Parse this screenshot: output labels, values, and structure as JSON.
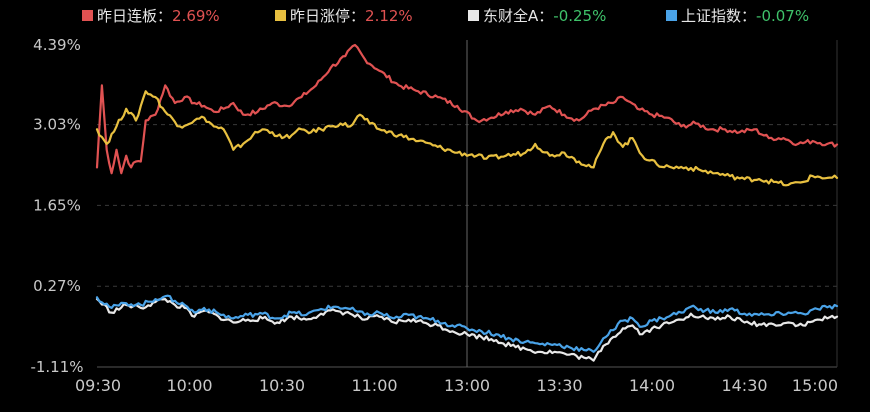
{
  "chart_data": {
    "type": "line",
    "y_unit": "%",
    "x_ticks": [
      "09:30",
      "10:00",
      "10:30",
      "11:00",
      "13:00",
      "13:30",
      "14:00",
      "14:30",
      "15:00"
    ],
    "y_ticks": [
      "4.39%",
      "3.03%",
      "1.65%",
      "0.27%",
      "-1.11%"
    ],
    "ylim": [
      -1.11,
      4.39
    ],
    "grid": "horizontal-dashed",
    "legend": "top",
    "series": [
      {
        "name": "昨日连板",
        "latest": "2.69%",
        "color": "#e05252",
        "points": [
          [
            0,
            2.3
          ],
          [
            1,
            3.7
          ],
          [
            2,
            2.6
          ],
          [
            3,
            2.2
          ],
          [
            4,
            2.6
          ],
          [
            5,
            2.2
          ],
          [
            6,
            2.5
          ],
          [
            7,
            2.3
          ],
          [
            8,
            2.4
          ],
          [
            9,
            2.4
          ],
          [
            10,
            3.1
          ],
          [
            12,
            3.2
          ],
          [
            14,
            3.7
          ],
          [
            16,
            3.4
          ],
          [
            18,
            3.5
          ],
          [
            20,
            3.4
          ],
          [
            22,
            3.35
          ],
          [
            24,
            3.25
          ],
          [
            26,
            3.3
          ],
          [
            28,
            3.4
          ],
          [
            30,
            3.2
          ],
          [
            33,
            3.25
          ],
          [
            36,
            3.4
          ],
          [
            39,
            3.35
          ],
          [
            42,
            3.5
          ],
          [
            45,
            3.7
          ],
          [
            48,
            4.0
          ],
          [
            51,
            4.2
          ],
          [
            53,
            4.39
          ],
          [
            55,
            4.15
          ],
          [
            58,
            3.95
          ],
          [
            62,
            3.7
          ],
          [
            66,
            3.6
          ],
          [
            70,
            3.5
          ],
          [
            74,
            3.35
          ],
          [
            78,
            3.1
          ],
          [
            81,
            3.15
          ],
          [
            84,
            3.25
          ],
          [
            87,
            3.3
          ],
          [
            90,
            3.2
          ],
          [
            93,
            3.35
          ],
          [
            96,
            3.2
          ],
          [
            99,
            3.1
          ],
          [
            102,
            3.3
          ],
          [
            106,
            3.4
          ],
          [
            108,
            3.5
          ],
          [
            111,
            3.3
          ],
          [
            114,
            3.2
          ],
          [
            117,
            3.15
          ],
          [
            120,
            3.0
          ],
          [
            123,
            3.05
          ],
          [
            126,
            2.95
          ],
          [
            129,
            2.95
          ],
          [
            132,
            2.9
          ],
          [
            135,
            2.95
          ],
          [
            138,
            2.8
          ],
          [
            141,
            2.8
          ],
          [
            144,
            2.7
          ],
          [
            147,
            2.75
          ],
          [
            150,
            2.7
          ],
          [
            152,
            2.69
          ]
        ]
      },
      {
        "name": "昨日涨停",
        "latest": "2.12%",
        "color": "#e8c040",
        "points": [
          [
            0,
            2.95
          ],
          [
            2,
            2.7
          ],
          [
            4,
            3.0
          ],
          [
            6,
            3.3
          ],
          [
            8,
            3.1
          ],
          [
            10,
            3.6
          ],
          [
            12,
            3.5
          ],
          [
            14,
            3.25
          ],
          [
            17,
            3.0
          ],
          [
            20,
            3.1
          ],
          [
            22,
            3.15
          ],
          [
            24,
            3.0
          ],
          [
            26,
            2.95
          ],
          [
            28,
            2.6
          ],
          [
            30,
            2.7
          ],
          [
            32,
            2.85
          ],
          [
            34,
            2.95
          ],
          [
            36,
            2.9
          ],
          [
            38,
            2.8
          ],
          [
            40,
            2.85
          ],
          [
            42,
            2.95
          ],
          [
            44,
            2.9
          ],
          [
            46,
            2.95
          ],
          [
            48,
            3.0
          ],
          [
            50,
            3.05
          ],
          [
            52,
            3.0
          ],
          [
            54,
            3.2
          ],
          [
            56,
            3.05
          ],
          [
            58,
            2.95
          ],
          [
            62,
            2.85
          ],
          [
            66,
            2.75
          ],
          [
            70,
            2.65
          ],
          [
            74,
            2.55
          ],
          [
            78,
            2.5
          ],
          [
            80,
            2.45
          ],
          [
            84,
            2.5
          ],
          [
            88,
            2.55
          ],
          [
            90,
            2.7
          ],
          [
            93,
            2.5
          ],
          [
            96,
            2.55
          ],
          [
            99,
            2.4
          ],
          [
            102,
            2.3
          ],
          [
            104,
            2.7
          ],
          [
            106,
            2.9
          ],
          [
            108,
            2.65
          ],
          [
            110,
            2.8
          ],
          [
            112,
            2.5
          ],
          [
            115,
            2.35
          ],
          [
            118,
            2.3
          ],
          [
            121,
            2.3
          ],
          [
            124,
            2.25
          ],
          [
            127,
            2.2
          ],
          [
            130,
            2.15
          ],
          [
            133,
            2.1
          ],
          [
            136,
            2.1
          ],
          [
            139,
            2.05
          ],
          [
            142,
            2.0
          ],
          [
            145,
            2.05
          ],
          [
            147,
            2.15
          ],
          [
            150,
            2.12
          ],
          [
            152,
            2.12
          ]
        ]
      },
      {
        "name": "东财全A",
        "latest": "-0.25%",
        "color": "#e8e8e8",
        "points": [
          [
            0,
            0.05
          ],
          [
            3,
            -0.18
          ],
          [
            6,
            -0.05
          ],
          [
            9,
            -0.1
          ],
          [
            12,
            0.0
          ],
          [
            14,
            0.05
          ],
          [
            16,
            -0.05
          ],
          [
            18,
            -0.1
          ],
          [
            20,
            -0.25
          ],
          [
            22,
            -0.15
          ],
          [
            25,
            -0.25
          ],
          [
            28,
            -0.35
          ],
          [
            31,
            -0.3
          ],
          [
            34,
            -0.28
          ],
          [
            37,
            -0.35
          ],
          [
            40,
            -0.25
          ],
          [
            43,
            -0.3
          ],
          [
            46,
            -0.2
          ],
          [
            49,
            -0.15
          ],
          [
            52,
            -0.2
          ],
          [
            55,
            -0.3
          ],
          [
            58,
            -0.25
          ],
          [
            61,
            -0.35
          ],
          [
            64,
            -0.3
          ],
          [
            67,
            -0.35
          ],
          [
            70,
            -0.4
          ],
          [
            73,
            -0.5
          ],
          [
            76,
            -0.55
          ],
          [
            79,
            -0.6
          ],
          [
            82,
            -0.65
          ],
          [
            85,
            -0.75
          ],
          [
            88,
            -0.8
          ],
          [
            91,
            -0.85
          ],
          [
            94,
            -0.85
          ],
          [
            97,
            -0.9
          ],
          [
            100,
            -0.95
          ],
          [
            102,
            -1.0
          ],
          [
            104,
            -0.75
          ],
          [
            106,
            -0.6
          ],
          [
            108,
            -0.45
          ],
          [
            110,
            -0.4
          ],
          [
            112,
            -0.55
          ],
          [
            114,
            -0.45
          ],
          [
            116,
            -0.4
          ],
          [
            118,
            -0.35
          ],
          [
            120,
            -0.3
          ],
          [
            122,
            -0.2
          ],
          [
            124,
            -0.25
          ],
          [
            127,
            -0.3
          ],
          [
            130,
            -0.25
          ],
          [
            133,
            -0.35
          ],
          [
            136,
            -0.38
          ],
          [
            139,
            -0.38
          ],
          [
            142,
            -0.35
          ],
          [
            145,
            -0.4
          ],
          [
            148,
            -0.3
          ],
          [
            150,
            -0.28
          ],
          [
            152,
            -0.25
          ]
        ]
      },
      {
        "name": "上证指数",
        "latest": "-0.07%",
        "color": "#4aa3e8",
        "points": [
          [
            0,
            0.08
          ],
          [
            3,
            -0.1
          ],
          [
            6,
            -0.02
          ],
          [
            9,
            -0.05
          ],
          [
            12,
            0.05
          ],
          [
            14,
            0.1
          ],
          [
            16,
            0.02
          ],
          [
            18,
            -0.05
          ],
          [
            20,
            -0.18
          ],
          [
            22,
            -0.1
          ],
          [
            25,
            -0.2
          ],
          [
            28,
            -0.28
          ],
          [
            31,
            -0.22
          ],
          [
            34,
            -0.2
          ],
          [
            37,
            -0.28
          ],
          [
            40,
            -0.18
          ],
          [
            43,
            -0.22
          ],
          [
            46,
            -0.12
          ],
          [
            49,
            -0.08
          ],
          [
            52,
            -0.12
          ],
          [
            55,
            -0.22
          ],
          [
            58,
            -0.18
          ],
          [
            61,
            -0.28
          ],
          [
            64,
            -0.22
          ],
          [
            67,
            -0.28
          ],
          [
            70,
            -0.32
          ],
          [
            73,
            -0.4
          ],
          [
            76,
            -0.45
          ],
          [
            79,
            -0.5
          ],
          [
            82,
            -0.55
          ],
          [
            85,
            -0.63
          ],
          [
            88,
            -0.68
          ],
          [
            91,
            -0.72
          ],
          [
            94,
            -0.72
          ],
          [
            97,
            -0.77
          ],
          [
            100,
            -0.82
          ],
          [
            102,
            -0.85
          ],
          [
            104,
            -0.62
          ],
          [
            106,
            -0.48
          ],
          [
            108,
            -0.32
          ],
          [
            110,
            -0.28
          ],
          [
            112,
            -0.42
          ],
          [
            114,
            -0.32
          ],
          [
            116,
            -0.28
          ],
          [
            118,
            -0.22
          ],
          [
            120,
            -0.18
          ],
          [
            122,
            -0.08
          ],
          [
            124,
            -0.12
          ],
          [
            127,
            -0.18
          ],
          [
            130,
            -0.12
          ],
          [
            133,
            -0.2
          ],
          [
            136,
            -0.22
          ],
          [
            139,
            -0.22
          ],
          [
            142,
            -0.18
          ],
          [
            145,
            -0.2
          ],
          [
            148,
            -0.12
          ],
          [
            150,
            -0.09
          ],
          [
            152,
            -0.07
          ]
        ]
      }
    ]
  }
}
